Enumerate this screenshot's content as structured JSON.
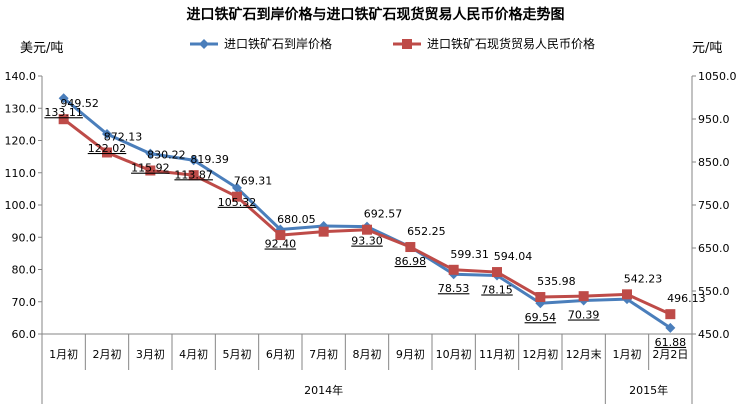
{
  "chart_data": {
    "type": "line",
    "title": "进口铁矿石到岸价格与进口铁矿石现货贸易人民币价格走势图",
    "y_left_unit": "美元/吨",
    "y_right_unit": "元/吨",
    "categories": [
      "1月初",
      "2月初",
      "3月初",
      "4月初",
      "5月初",
      "6月初",
      "7月初",
      "8月初",
      "9月初",
      "10月初",
      "11月初",
      "12月初",
      "12月末",
      "1月初",
      "2月2日"
    ],
    "year_groups": [
      {
        "label": "2014年",
        "start": 0,
        "end": 12
      },
      {
        "label": "2015年",
        "start": 13,
        "end": 14
      }
    ],
    "ylim_left": [
      60,
      140
    ],
    "yticks_left": [
      "60.0",
      "70.0",
      "80.0",
      "90.0",
      "100.0",
      "110.0",
      "120.0",
      "130.0",
      "140.0"
    ],
    "ylim_right": [
      450,
      1050
    ],
    "yticks_right": [
      "450.0",
      "550.0",
      "650.0",
      "750.0",
      "850.0",
      "950.0",
      "1050.0"
    ],
    "grid": false,
    "legend_position": "top",
    "series": [
      {
        "name": "进口铁矿石到岸价格",
        "axis": "left",
        "color": "#4a7ebb",
        "marker": "diamond",
        "values": [
          133.11,
          122.02,
          115.92,
          113.87,
          105.32,
          92.4,
          93.5,
          93.3,
          86.98,
          78.53,
          78.15,
          69.54,
          70.39,
          70.8,
          61.88
        ],
        "labels": [
          "133.11",
          "122.02",
          "115.92",
          "113.87",
          "105.32",
          "92.40",
          null,
          "93.30",
          "86.98",
          "78.53",
          "78.15",
          "69.54",
          "70.39",
          null,
          "61.88"
        ]
      },
      {
        "name": "进口铁矿石现货贸易人民币价格",
        "axis": "right",
        "color": "#be4b48",
        "marker": "square",
        "values": [
          949.52,
          872.13,
          830.22,
          819.39,
          769.31,
          680.05,
          688,
          692.57,
          652.25,
          599.31,
          594.04,
          535.98,
          538,
          542.23,
          496.13
        ],
        "labels": [
          "949.52",
          "872.13",
          "830.22",
          "819.39",
          "769.31",
          "680.05",
          null,
          "692.57",
          "652.25",
          "599.31",
          "594.04",
          "535.98",
          null,
          "542.23",
          "496.13"
        ]
      }
    ]
  }
}
